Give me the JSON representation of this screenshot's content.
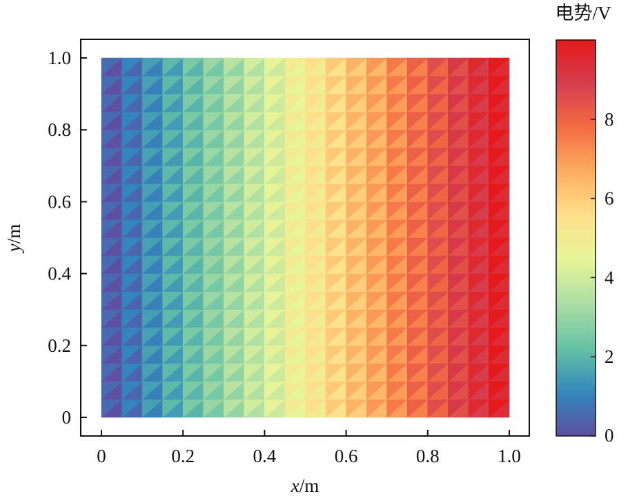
{
  "chart_data": {
    "type": "heatmap",
    "title": "",
    "x": {
      "label_var": "x",
      "label_unit": "/m",
      "range": [
        0,
        1.0
      ],
      "ticks": [
        0,
        0.2,
        0.4,
        0.6,
        0.8,
        1.0
      ],
      "tick_labels": [
        "0",
        "0.2",
        "0.4",
        "0.6",
        "0.8",
        "1.0"
      ]
    },
    "y": {
      "label_var": "y",
      "label_unit": "/m",
      "range": [
        0,
        1.0
      ],
      "ticks": [
        0,
        0.2,
        0.4,
        0.6,
        0.8,
        1.0
      ],
      "tick_labels": [
        "0",
        "0.2",
        "0.4",
        "0.6",
        "0.8",
        "1.0"
      ]
    },
    "colorbar": {
      "title": "电势/V",
      "range": [
        0,
        10
      ],
      "ticks": [
        0,
        2,
        4,
        6,
        8
      ],
      "tick_labels": [
        "0",
        "2",
        "4",
        "6",
        "8"
      ],
      "colormap": [
        "#5e4fa2",
        "#3288bd",
        "#66c2a5",
        "#abdda4",
        "#e6f598",
        "#fee08b",
        "#fdae61",
        "#f46d43",
        "#d53e4f",
        "#e41a1c"
      ]
    },
    "field": {
      "description_of_values": "potential depends linearly on x only",
      "x_centers": [
        0.025,
        0.075,
        0.125,
        0.175,
        0.225,
        0.275,
        0.325,
        0.375,
        0.425,
        0.475,
        0.525,
        0.575,
        0.625,
        0.675,
        0.725,
        0.775,
        0.825,
        0.875,
        0.925,
        0.975
      ],
      "values": [
        0.25,
        0.75,
        1.25,
        1.75,
        2.25,
        2.75,
        3.25,
        3.75,
        4.25,
        4.75,
        5.25,
        5.75,
        6.25,
        6.75,
        7.25,
        7.75,
        8.25,
        8.75,
        9.25,
        9.75
      ]
    }
  }
}
